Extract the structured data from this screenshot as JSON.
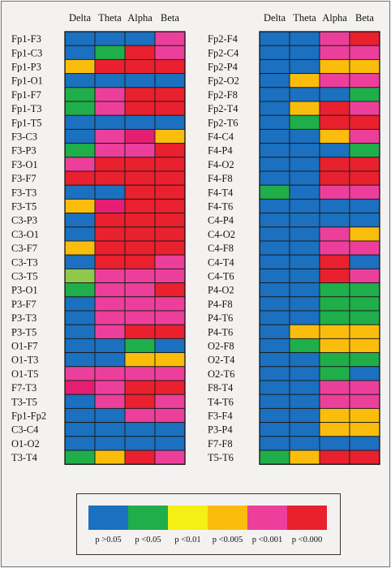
{
  "chart_data": {
    "type": "heatmap",
    "columns": [
      "Delta",
      "Theta",
      "Alpha",
      "Beta"
    ],
    "palette": {
      "blue": {
        "hex": "#1b70bf",
        "label": "p >0.05"
      },
      "green": {
        "hex": "#1fae4a",
        "label": "p <0.05"
      },
      "yellow": {
        "hex": "#f4ef14",
        "label": "p <0.01"
      },
      "orange": {
        "hex": "#fbbd0c",
        "label": "p <0.005"
      },
      "pink": {
        "hex": "#ec3f9b",
        "label": "p <0.001"
      },
      "red": {
        "hex": "#e9202e",
        "label": "p <0.000"
      }
    },
    "extra_colors": {
      "lightgreen": "#8fc84b",
      "magenta": "#e51e72"
    },
    "legend_order": [
      "blue",
      "green",
      "yellow",
      "orange",
      "pink",
      "red"
    ],
    "left": {
      "rows": [
        {
          "label": "Fp1-F3",
          "cells": [
            "blue",
            "blue",
            "blue",
            "pink"
          ]
        },
        {
          "label": "Fp1-C3",
          "cells": [
            "blue",
            "green",
            "red",
            "pink"
          ]
        },
        {
          "label": "Fp1-P3",
          "cells": [
            "orange",
            "red",
            "red",
            "red"
          ]
        },
        {
          "label": "Fp1-O1",
          "cells": [
            "blue",
            "blue",
            "blue",
            "blue"
          ]
        },
        {
          "label": "Fp1-F7",
          "cells": [
            "green",
            "pink",
            "red",
            "red"
          ]
        },
        {
          "label": "Fp1-T3",
          "cells": [
            "green",
            "pink",
            "red",
            "red"
          ]
        },
        {
          "label": "Fp1-T5",
          "cells": [
            "blue",
            "blue",
            "blue",
            "blue"
          ]
        },
        {
          "label": "F3-C3",
          "cells": [
            "blue",
            "pink",
            "magenta",
            "orange"
          ]
        },
        {
          "label": "F3-P3",
          "cells": [
            "green",
            "pink",
            "pink",
            "red"
          ]
        },
        {
          "label": "F3-O1",
          "cells": [
            "pink",
            "red",
            "red",
            "red"
          ]
        },
        {
          "label": "F3-F7",
          "cells": [
            "red",
            "red",
            "red",
            "red"
          ]
        },
        {
          "label": "F3-T3",
          "cells": [
            "blue",
            "blue",
            "red",
            "red"
          ]
        },
        {
          "label": "F3-T5",
          "cells": [
            "orange",
            "magenta",
            "red",
            "red"
          ]
        },
        {
          "label": "C3-P3",
          "cells": [
            "blue",
            "red",
            "red",
            "red"
          ]
        },
        {
          "label": "C3-O1",
          "cells": [
            "blue",
            "red",
            "red",
            "red"
          ]
        },
        {
          "label": "C3-F7",
          "cells": [
            "orange",
            "red",
            "red",
            "red"
          ]
        },
        {
          "label": "C3-T3",
          "cells": [
            "blue",
            "red",
            "red",
            "pink"
          ]
        },
        {
          "label": "C3-T5",
          "cells": [
            "lightgreen",
            "pink",
            "pink",
            "pink"
          ]
        },
        {
          "label": "P3-O1",
          "cells": [
            "green",
            "pink",
            "pink",
            "red"
          ]
        },
        {
          "label": "P3-F7",
          "cells": [
            "blue",
            "pink",
            "pink",
            "pink"
          ]
        },
        {
          "label": "P3-T3",
          "cells": [
            "blue",
            "pink",
            "pink",
            "pink"
          ]
        },
        {
          "label": "P3-T5",
          "cells": [
            "blue",
            "pink",
            "red",
            "red"
          ]
        },
        {
          "label": "O1-F7",
          "cells": [
            "blue",
            "blue",
            "green",
            "blue"
          ]
        },
        {
          "label": "O1-T3",
          "cells": [
            "blue",
            "blue",
            "orange",
            "orange"
          ]
        },
        {
          "label": "O1-T5",
          "cells": [
            "pink",
            "pink",
            "pink",
            "pink"
          ]
        },
        {
          "label": "F7-T3",
          "cells": [
            "magenta",
            "pink",
            "red",
            "red"
          ]
        },
        {
          "label": "T3-T5",
          "cells": [
            "blue",
            "pink",
            "red",
            "pink"
          ]
        },
        {
          "label": "Fp1-Fp2",
          "cells": [
            "blue",
            "blue",
            "pink",
            "pink"
          ]
        },
        {
          "label": "C3-C4",
          "cells": [
            "blue",
            "blue",
            "blue",
            "blue"
          ]
        },
        {
          "label": "O1-O2",
          "cells": [
            "blue",
            "blue",
            "blue",
            "blue"
          ]
        },
        {
          "label": "T3-T4",
          "cells": [
            "green",
            "orange",
            "red",
            "pink"
          ]
        }
      ]
    },
    "right": {
      "rows": [
        {
          "label": "Fp2-F4",
          "cells": [
            "blue",
            "blue",
            "pink",
            "red"
          ]
        },
        {
          "label": "Fp2-C4",
          "cells": [
            "blue",
            "blue",
            "pink",
            "pink"
          ]
        },
        {
          "label": "Fp2-P4",
          "cells": [
            "blue",
            "blue",
            "orange",
            "orange"
          ]
        },
        {
          "label": "Fp2-O2",
          "cells": [
            "blue",
            "orange",
            "pink",
            "pink"
          ]
        },
        {
          "label": "Fp2-F8",
          "cells": [
            "blue",
            "blue",
            "blue",
            "green"
          ]
        },
        {
          "label": "Fp2-T4",
          "cells": [
            "blue",
            "orange",
            "red",
            "pink"
          ]
        },
        {
          "label": "Fp2-T6",
          "cells": [
            "blue",
            "green",
            "red",
            "red"
          ]
        },
        {
          "label": "F4-C4",
          "cells": [
            "blue",
            "blue",
            "orange",
            "pink"
          ]
        },
        {
          "label": "F4-P4",
          "cells": [
            "blue",
            "blue",
            "blue",
            "green"
          ]
        },
        {
          "label": "F4-O2",
          "cells": [
            "blue",
            "blue",
            "red",
            "red"
          ]
        },
        {
          "label": "F4-F8",
          "cells": [
            "blue",
            "blue",
            "red",
            "red"
          ]
        },
        {
          "label": "F4-T4",
          "cells": [
            "green",
            "blue",
            "pink",
            "pink"
          ]
        },
        {
          "label": "F4-T6",
          "cells": [
            "blue",
            "blue",
            "blue",
            "blue"
          ]
        },
        {
          "label": "C4-P4",
          "cells": [
            "blue",
            "blue",
            "blue",
            "blue"
          ]
        },
        {
          "label": "C4-O2",
          "cells": [
            "blue",
            "blue",
            "pink",
            "orange"
          ]
        },
        {
          "label": "C4-F8",
          "cells": [
            "blue",
            "blue",
            "pink",
            "pink"
          ]
        },
        {
          "label": "C4-T4",
          "cells": [
            "blue",
            "blue",
            "red",
            "blue"
          ]
        },
        {
          "label": "C4-T6",
          "cells": [
            "blue",
            "blue",
            "red",
            "pink"
          ]
        },
        {
          "label": "P4-O2",
          "cells": [
            "blue",
            "blue",
            "green",
            "green"
          ]
        },
        {
          "label": "P4-F8",
          "cells": [
            "blue",
            "blue",
            "green",
            "green"
          ]
        },
        {
          "label": "P4-T6",
          "cells": [
            "blue",
            "blue",
            "green",
            "green"
          ]
        },
        {
          "label": "P4-T6",
          "cells": [
            "blue",
            "orange",
            "orange",
            "orange"
          ]
        },
        {
          "label": "O2-F8",
          "cells": [
            "blue",
            "green",
            "orange",
            "orange"
          ]
        },
        {
          "label": "O2-T4",
          "cells": [
            "blue",
            "blue",
            "green",
            "green"
          ]
        },
        {
          "label": "O2-T6",
          "cells": [
            "blue",
            "blue",
            "green",
            "blue"
          ]
        },
        {
          "label": "F8-T4",
          "cells": [
            "blue",
            "blue",
            "pink",
            "pink"
          ]
        },
        {
          "label": "T4-T6",
          "cells": [
            "blue",
            "blue",
            "pink",
            "pink"
          ]
        },
        {
          "label": "F3-F4",
          "cells": [
            "blue",
            "blue",
            "orange",
            "orange"
          ]
        },
        {
          "label": "P3-P4",
          "cells": [
            "blue",
            "blue",
            "orange",
            "orange"
          ]
        },
        {
          "label": "F7-F8",
          "cells": [
            "blue",
            "blue",
            "blue",
            "blue"
          ]
        },
        {
          "label": "T5-T6",
          "cells": [
            "green",
            "orange",
            "red",
            "red"
          ]
        }
      ]
    }
  }
}
